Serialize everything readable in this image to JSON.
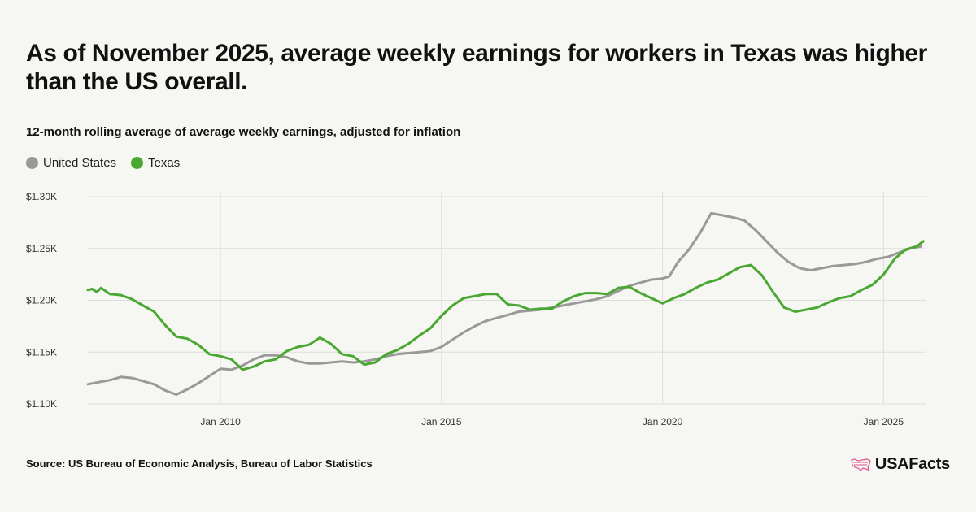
{
  "title": "As of November 2025, average weekly earnings for workers in Texas was higher than the US overall.",
  "subtitle": "12-month rolling average of average weekly earnings, adjusted for inflation",
  "source": "Source: US Bureau of Economic Analysis, Bureau of Labor Statistics",
  "brand": {
    "name": "USAFacts",
    "accent": "#e0518d"
  },
  "colors": {
    "us": "#999999",
    "texas": "#4aa832",
    "grid": "#dddddd"
  },
  "chart_data": {
    "type": "line",
    "title": "As of November 2025, average weekly earnings for workers in Texas was higher than the US overall.",
    "xlabel": "",
    "ylabel": "",
    "xlim": [
      2007.0,
      2025.95
    ],
    "ylim": [
      1100,
      1300
    ],
    "y_ticks": [
      1100,
      1150,
      1200,
      1250,
      1300
    ],
    "y_tick_labels": [
      "$1.10K",
      "$1.15K",
      "$1.20K",
      "$1.25K",
      "$1.30K"
    ],
    "x_ticks": [
      2010,
      2015,
      2020,
      2025
    ],
    "x_tick_labels": [
      "Jan 2010",
      "Jan 2015",
      "Jan 2020",
      "Jan 2025"
    ],
    "grid": true,
    "legend_position": "top-left",
    "series": [
      {
        "name": "United States",
        "color": "#999999",
        "x": [
          2007.0,
          2007.25,
          2007.5,
          2007.75,
          2008.0,
          2008.25,
          2008.5,
          2008.75,
          2009.0,
          2009.25,
          2009.5,
          2009.75,
          2010.0,
          2010.25,
          2010.5,
          2010.75,
          2011.0,
          2011.25,
          2011.5,
          2011.75,
          2012.0,
          2012.25,
          2012.5,
          2012.75,
          2013.0,
          2013.25,
          2013.5,
          2013.75,
          2014.0,
          2014.25,
          2014.5,
          2014.75,
          2015.0,
          2015.25,
          2015.5,
          2015.75,
          2016.0,
          2016.25,
          2016.5,
          2016.75,
          2017.0,
          2017.25,
          2017.5,
          2017.75,
          2018.0,
          2018.25,
          2018.5,
          2018.75,
          2019.0,
          2019.25,
          2019.5,
          2019.75,
          2020.0,
          2020.15,
          2020.35,
          2020.6,
          2020.85,
          2021.1,
          2021.35,
          2021.6,
          2021.85,
          2022.1,
          2022.35,
          2022.6,
          2022.85,
          2023.1,
          2023.35,
          2023.6,
          2023.85,
          2024.1,
          2024.35,
          2024.6,
          2024.85,
          2025.1,
          2025.35,
          2025.6,
          2025.85
        ],
        "values": [
          1119,
          1121,
          1123,
          1126,
          1125,
          1122,
          1119,
          1113,
          1109,
          1114,
          1120,
          1127,
          1134,
          1133,
          1137,
          1143,
          1147,
          1147,
          1145,
          1141,
          1139,
          1139,
          1140,
          1141,
          1140,
          1141,
          1143,
          1146,
          1148,
          1149,
          1150,
          1151,
          1155,
          1162,
          1169,
          1175,
          1180,
          1183,
          1186,
          1189,
          1190,
          1191,
          1193,
          1195,
          1197,
          1199,
          1201,
          1204,
          1209,
          1214,
          1217,
          1220,
          1221,
          1223,
          1237,
          1249,
          1265,
          1284,
          1282,
          1280,
          1277,
          1268,
          1257,
          1246,
          1237,
          1231,
          1229,
          1231,
          1233,
          1234,
          1235,
          1237,
          1240,
          1242,
          1246,
          1250,
          1252
        ]
      },
      {
        "name": "Texas",
        "color": "#4aa832",
        "x": [
          2007.0,
          2007.1,
          2007.2,
          2007.3,
          2007.5,
          2007.75,
          2008.0,
          2008.25,
          2008.5,
          2008.75,
          2009.0,
          2009.25,
          2009.5,
          2009.75,
          2010.0,
          2010.25,
          2010.5,
          2010.75,
          2011.0,
          2011.25,
          2011.5,
          2011.75,
          2012.0,
          2012.25,
          2012.5,
          2012.75,
          2013.0,
          2013.25,
          2013.5,
          2013.75,
          2014.0,
          2014.25,
          2014.5,
          2014.75,
          2015.0,
          2015.25,
          2015.5,
          2015.75,
          2016.0,
          2016.25,
          2016.5,
          2016.75,
          2017.0,
          2017.25,
          2017.5,
          2017.75,
          2018.0,
          2018.25,
          2018.5,
          2018.75,
          2019.0,
          2019.25,
          2019.5,
          2019.75,
          2020.0,
          2020.25,
          2020.5,
          2020.75,
          2021.0,
          2021.25,
          2021.5,
          2021.75,
          2022.0,
          2022.25,
          2022.5,
          2022.75,
          2023.0,
          2023.25,
          2023.5,
          2023.75,
          2024.0,
          2024.25,
          2024.5,
          2024.75,
          2025.0,
          2025.25,
          2025.5,
          2025.75,
          2025.9
        ],
        "values": [
          1210,
          1211,
          1208,
          1212,
          1206,
          1205,
          1201,
          1195,
          1189,
          1176,
          1165,
          1163,
          1157,
          1148,
          1146,
          1143,
          1133,
          1136,
          1141,
          1143,
          1151,
          1155,
          1157,
          1164,
          1158,
          1148,
          1146,
          1138,
          1140,
          1148,
          1152,
          1158,
          1166,
          1173,
          1185,
          1195,
          1202,
          1204,
          1206,
          1206,
          1196,
          1195,
          1191,
          1192,
          1192,
          1199,
          1204,
          1207,
          1207,
          1206,
          1212,
          1213,
          1207,
          1202,
          1197,
          1202,
          1206,
          1212,
          1217,
          1220,
          1226,
          1232,
          1234,
          1224,
          1208,
          1193,
          1189,
          1191,
          1193,
          1198,
          1202,
          1204,
          1210,
          1215,
          1225,
          1240,
          1249,
          1252,
          1257
        ]
      }
    ]
  }
}
